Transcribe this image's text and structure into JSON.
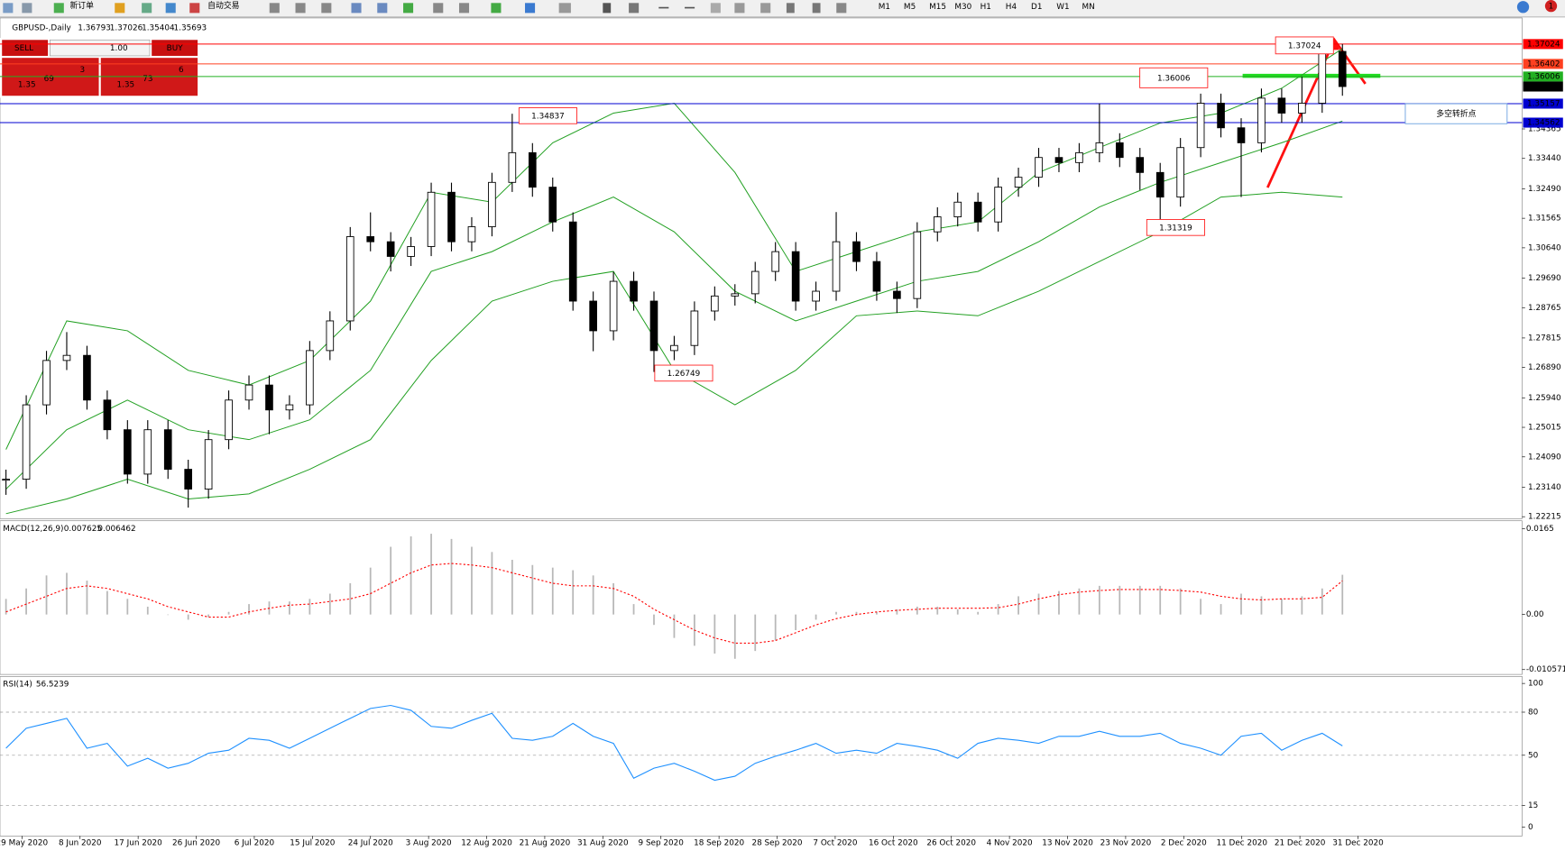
{
  "toolbar": {
    "buttons": [
      "新订单",
      "自动交易"
    ],
    "timeframes": [
      "M1",
      "M5",
      "M15",
      "M30",
      "H1",
      "H4",
      "D1",
      "W1",
      "MN"
    ],
    "notifications": "1"
  },
  "trade_panel": {
    "sell": "SELL",
    "lot": "1.00",
    "buy": "BUY",
    "sell_price": {
      "big": "1.35",
      "pips": "69",
      "point": "3"
    },
    "buy_price": {
      "big": "1.35",
      "pips": "73",
      "point": "6"
    }
  },
  "chart_data": {
    "type": "candlestick",
    "symbol_label": "GBPUSD-,Daily",
    "categories": [
      "29 May 2020",
      "8 Jun 2020",
      "17 Jun 2020",
      "26 Jun 2020",
      "6 Jul 2020",
      "15 Jul 2020",
      "24 Jul 2020",
      "3 Aug 2020",
      "12 Aug 2020",
      "21 Aug 2020",
      "31 Aug 2020",
      "9 Sep 2020",
      "18 Sep 2020",
      "28 Sep 2020",
      "7 Oct 2020",
      "16 Oct 2020",
      "26 Oct 2020",
      "4 Nov 2020",
      "13 Nov 2020",
      "23 Nov 2020",
      "2 Dec 2020",
      "11 Dec 2020",
      "21 Dec 2020",
      "31 Dec 2020"
    ],
    "ylim": [
      1.2215,
      1.3731
    ],
    "yticks": [
      {
        "value": 1.34365,
        "label": "1.34365"
      },
      {
        "value": 1.3344,
        "label": "1.33440"
      },
      {
        "value": 1.3249,
        "label": "1.32490"
      },
      {
        "value": 1.31565,
        "label": "1.31565"
      },
      {
        "value": 1.3064,
        "label": "1.30640"
      },
      {
        "value": 1.2969,
        "label": "1.29690"
      },
      {
        "value": 1.28765,
        "label": "1.28765"
      },
      {
        "value": 1.27815,
        "label": "1.27815"
      },
      {
        "value": 1.2689,
        "label": "1.26890"
      },
      {
        "value": 1.2594,
        "label": "1.25940"
      },
      {
        "value": 1.25015,
        "label": "1.25015"
      },
      {
        "value": 1.2409,
        "label": "1.24090"
      },
      {
        "value": 1.2314,
        "label": "1.23140"
      },
      {
        "value": 1.22215,
        "label": "1.22215"
      }
    ],
    "close": [
      1.2339,
      1.2572,
      1.2711,
      1.2727,
      1.2587,
      1.2494,
      1.2355,
      1.2494,
      1.237,
      1.2308,
      1.2463,
      1.2587,
      1.2634,
      1.2556,
      1.2572,
      1.2742,
      1.2835,
      1.3099,
      1.3083,
      1.3037,
      1.3068,
      1.3238,
      1.3083,
      1.313,
      1.3269,
      1.3362,
      1.3254,
      1.3145,
      1.2897,
      1.2804,
      1.2959,
      1.2897,
      1.2742,
      1.2758,
      1.2866,
      1.2913,
      1.292,
      1.299,
      1.3052,
      1.2897,
      1.2928,
      1.3083,
      1.3021,
      1.2928,
      1.2905,
      1.3114,
      1.3161,
      1.3207,
      1.3145,
      1.3254,
      1.3285,
      1.3347,
      1.3331,
      1.3362,
      1.3393,
      1.3347,
      1.33,
      1.3223,
      1.3378,
      1.3517,
      1.344,
      1.3393,
      1.3533,
      1.3486,
      1.3517,
      1.36793,
      1.35693
    ],
    "high": [
      1.2369,
      1.2602,
      1.2741,
      1.28,
      1.2757,
      1.2617,
      1.2524,
      1.2524,
      1.2524,
      1.24,
      1.2493,
      1.2617,
      1.2664,
      1.2664,
      1.2602,
      1.2772,
      1.2865,
      1.3129,
      1.3175,
      1.3113,
      1.3098,
      1.3268,
      1.3268,
      1.316,
      1.3299,
      1.3484,
      1.3392,
      1.3284,
      1.3175,
      1.2927,
      1.2989,
      1.2989,
      1.2927,
      1.2788,
      1.2896,
      1.2943,
      1.295,
      1.302,
      1.3082,
      1.3082,
      1.2958,
      1.3176,
      1.3113,
      1.3051,
      1.2958,
      1.3144,
      1.3191,
      1.3237,
      1.3237,
      1.3284,
      1.3315,
      1.3377,
      1.3377,
      1.3392,
      1.3516,
      1.3423,
      1.3377,
      1.333,
      1.3408,
      1.3547,
      1.3547,
      1.347,
      1.3563,
      1.3563,
      1.36,
      1.369,
      1.37026
    ],
    "low": [
      1.229,
      1.2309,
      1.2542,
      1.2681,
      1.2557,
      1.2464,
      1.2325,
      1.2325,
      1.234,
      1.225,
      1.2278,
      1.2433,
      1.2557,
      1.248,
      1.2526,
      1.2542,
      1.2712,
      1.2805,
      1.3053,
      1.299,
      1.3007,
      1.3038,
      1.3053,
      1.3053,
      1.31,
      1.3239,
      1.3224,
      1.3115,
      1.2867,
      1.274,
      1.2774,
      1.2867,
      1.2675,
      1.2712,
      1.2728,
      1.2836,
      1.2883,
      1.289,
      1.296,
      1.2867,
      1.2867,
      1.2898,
      1.2991,
      1.2898,
      1.286,
      1.2875,
      1.3084,
      1.3131,
      1.3115,
      1.3115,
      1.3224,
      1.3255,
      1.3301,
      1.3301,
      1.3332,
      1.3317,
      1.3245,
      1.3132,
      1.3193,
      1.3348,
      1.341,
      1.3223,
      1.3363,
      1.3456,
      1.3456,
      1.3487,
      1.35404
    ],
    "bands": {
      "color": "#22a022",
      "upper": [
        1.2432,
        1.2835,
        1.2804,
        1.268,
        1.2634,
        1.2711,
        1.2897,
        1.3238,
        1.3207,
        1.3393,
        1.3486,
        1.3517,
        1.33,
        1.299,
        1.3052,
        1.3114,
        1.3145,
        1.33,
        1.3378,
        1.3455,
        1.3486,
        1.3564,
        1.3688
      ],
      "middle": [
        1.2308,
        1.2494,
        1.2587,
        1.2494,
        1.2463,
        1.2525,
        1.268,
        1.299,
        1.3052,
        1.3145,
        1.3223,
        1.3114,
        1.2928,
        1.2835,
        1.2897,
        1.2959,
        1.299,
        1.3083,
        1.3192,
        1.3269,
        1.3331,
        1.3393,
        1.3461
      ],
      "lower": [
        1.2231,
        1.2277,
        1.2339,
        1.2277,
        1.2293,
        1.237,
        1.2463,
        1.2711,
        1.2897,
        1.2959,
        1.299,
        1.268,
        1.2572,
        1.268,
        1.2851,
        1.2866,
        1.2851,
        1.2928,
        1.3021,
        1.3114,
        1.3223,
        1.3238,
        1.3223
      ]
    },
    "price_lines": [
      {
        "value": 1.37024,
        "color": "#ff0000"
      },
      {
        "value": 1.36402,
        "color": "#ff4020"
      },
      {
        "value": 1.36006,
        "color": "#22b022"
      },
      {
        "value": 1.35157,
        "color": "#0000d0"
      },
      {
        "value": 1.34562,
        "color": "#0000d0"
      }
    ],
    "annotations": [
      1.34837,
      1.26749,
      1.31319,
      1.36006,
      1.37024
    ],
    "note": "多空转折点",
    "macd": {
      "label": "MACD(12,26,9)",
      "ylim": [
        -0.0115,
        0.0178
      ],
      "yticks": [
        0.0165,
        {
          "value": 0,
          "label": "0.00"
        },
        -0.010571
      ],
      "histogram": [
        0.003,
        0.005,
        0.0075,
        0.008,
        0.0065,
        0.0045,
        0.003,
        0.0015,
        0.0,
        -0.001,
        -0.0005,
        0.0005,
        0.002,
        0.0025,
        0.0025,
        0.003,
        0.004,
        0.006,
        0.009,
        0.013,
        0.015,
        0.0155,
        0.0145,
        0.013,
        0.012,
        0.0105,
        0.0095,
        0.009,
        0.0085,
        0.0075,
        0.006,
        0.002,
        -0.002,
        -0.0045,
        -0.006,
        -0.0075,
        -0.0085,
        -0.007,
        -0.005,
        -0.003,
        -0.001,
        0.0005,
        0.0005,
        0.0005,
        0.001,
        0.0015,
        0.0015,
        0.001,
        0.0005,
        0.002,
        0.0035,
        0.004,
        0.0045,
        0.005,
        0.0055,
        0.0055,
        0.0055,
        0.0055,
        0.005,
        0.003,
        0.002,
        0.004,
        0.0035,
        0.003,
        0.0035,
        0.005,
        0.007625
      ],
      "signal": [
        0.0005,
        0.002,
        0.0035,
        0.005,
        0.0055,
        0.005,
        0.004,
        0.003,
        0.0015,
        0.0005,
        -0.0005,
        -0.0005,
        0.0005,
        0.0012,
        0.0018,
        0.002,
        0.0025,
        0.003,
        0.004,
        0.006,
        0.008,
        0.0095,
        0.0098,
        0.0095,
        0.009,
        0.008,
        0.007,
        0.006,
        0.0055,
        0.0055,
        0.005,
        0.0035,
        0.001,
        -0.001,
        -0.003,
        -0.0045,
        -0.0055,
        -0.0055,
        -0.005,
        -0.0035,
        -0.002,
        -0.0008,
        0.0,
        0.0005,
        0.0008,
        0.001,
        0.0012,
        0.0012,
        0.0012,
        0.0013,
        0.002,
        0.003,
        0.0038,
        0.0043,
        0.0046,
        0.0048,
        0.0048,
        0.0048,
        0.0046,
        0.0043,
        0.0035,
        0.003,
        0.0028,
        0.003,
        0.003,
        0.0033,
        0.006462
      ]
    },
    "rsi": {
      "label": "RSI(14)",
      "color": "#1e90ff",
      "ylim": [
        -6.25,
        104.9
      ],
      "yticks": [
        100,
        80,
        50,
        15,
        0
      ],
      "levels": [
        80,
        50,
        15
      ],
      "values": [
        54.9,
        68.8,
        72.2,
        75.7,
        54.9,
        58.3,
        42.4,
        47.9,
        41.0,
        44.4,
        51.4,
        53.5,
        61.8,
        60.4,
        54.9,
        61.8,
        68.8,
        75.7,
        82.6,
        84.7,
        81.3,
        70.1,
        68.8,
        74.3,
        79.2,
        61.8,
        60.4,
        63.2,
        72.2,
        63.2,
        58.3,
        34.0,
        41.0,
        44.4,
        38.9,
        32.6,
        35.4,
        44.4,
        49.3,
        53.5,
        58.3,
        51.4,
        53.5,
        51.4,
        58.3,
        56.2,
        53.5,
        47.9,
        58.3,
        61.8,
        60.4,
        58.3,
        63.2,
        63.2,
        66.7,
        63.2,
        63.2,
        65.3,
        58.3,
        54.9,
        50.0,
        63.2,
        65.3,
        53.5,
        60.4,
        65.3,
        56.5239
      ]
    }
  }
}
